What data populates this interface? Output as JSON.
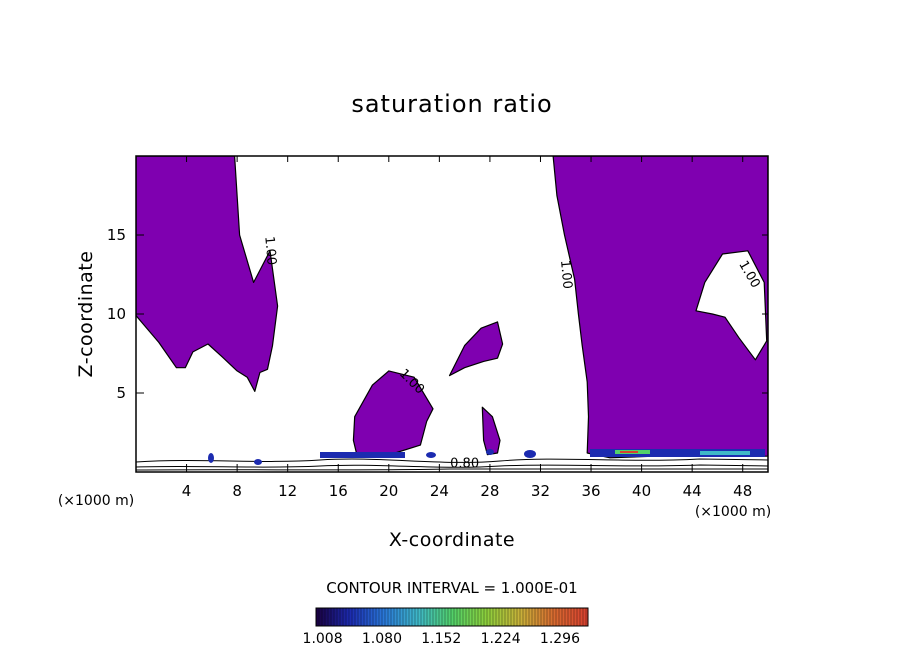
{
  "chart_data": {
    "type": "contour",
    "title": "saturation ratio",
    "xlabel": "X-coordinate",
    "ylabel": "Z-coordinate",
    "x_unit_label": "(×1000 m)",
    "x_unit_label_right": "(×1000 m)",
    "xlim": [
      0,
      50
    ],
    "ylim": [
      0,
      20
    ],
    "x_ticks": [
      4,
      8,
      12,
      16,
      20,
      24,
      28,
      32,
      36,
      40,
      44,
      48
    ],
    "x_tick_labels": [
      "4",
      "8",
      "12",
      "16",
      "20",
      "24",
      "28",
      "32",
      "36",
      "40",
      "44",
      "48"
    ],
    "y_ticks": [
      5,
      10,
      15
    ],
    "y_tick_labels": [
      "5",
      "10",
      "15"
    ],
    "contour_interval_text": "CONTOUR INTERVAL = 1.000E-01",
    "contour_labels": [
      {
        "text": "1.00",
        "x": 10.6,
        "z": 14.0,
        "rotation": 85
      },
      {
        "text": "1.00",
        "x": 34.0,
        "z": 12.5,
        "rotation": 85
      },
      {
        "text": "1.00",
        "x": 48.5,
        "z": 12.5,
        "rotation": 60
      },
      {
        "text": "1.00",
        "x": 21.8,
        "z": 5.7,
        "rotation": 45
      },
      {
        "text": "0.80",
        "x": 26.0,
        "z": 0.5,
        "rotation": 0
      }
    ],
    "colorbar": {
      "min": 1.0,
      "max": 1.33,
      "ticks": [
        1.008,
        1.08,
        1.152,
        1.224,
        1.296
      ],
      "tick_labels": [
        "1.008",
        "1.080",
        "1.152",
        "1.224",
        "1.296"
      ],
      "colors": [
        "#1a0040",
        "#1c2bb0",
        "#2a78d8",
        "#3fb8c8",
        "#52d06a",
        "#8ccf3c",
        "#c8b23a",
        "#d86a30",
        "#d84030"
      ]
    },
    "fill_color": "#7f00b0",
    "regions": [
      {
        "name": "left-cloud",
        "points": [
          [
            0,
            20
          ],
          [
            7.8,
            20
          ],
          [
            8.2,
            15
          ],
          [
            9.3,
            12
          ],
          [
            10.6,
            14
          ],
          [
            11.2,
            10.5
          ],
          [
            10.8,
            8
          ],
          [
            10.4,
            6.5
          ],
          [
            9.8,
            6.3
          ],
          [
            9.4,
            5.1
          ],
          [
            8.8,
            6
          ],
          [
            8,
            6.4
          ],
          [
            6.8,
            7.3
          ],
          [
            5.7,
            8.1
          ],
          [
            4.5,
            7.6
          ],
          [
            3.9,
            6.6
          ],
          [
            3.2,
            6.6
          ],
          [
            1.8,
            8.2
          ],
          [
            0,
            9.9
          ]
        ]
      },
      {
        "name": "right-cloud",
        "points": [
          [
            33,
            20
          ],
          [
            50,
            20
          ],
          [
            50,
            1.0
          ],
          [
            47,
            1.0
          ],
          [
            44,
            1.2
          ],
          [
            41,
            1.0
          ],
          [
            37.5,
            0.9
          ],
          [
            35.7,
            1.2
          ],
          [
            35.8,
            3.5
          ],
          [
            35.7,
            5.7
          ],
          [
            35.3,
            8.0
          ],
          [
            35.0,
            10.0
          ],
          [
            34.7,
            12.2
          ],
          [
            33.9,
            15.0
          ],
          [
            33.3,
            17.5
          ]
        ]
      },
      {
        "name": "right-hole",
        "points": [
          [
            44.3,
            10.2
          ],
          [
            45.0,
            12.0
          ],
          [
            46.4,
            13.8
          ],
          [
            48.4,
            14.0
          ],
          [
            49.7,
            12.0
          ],
          [
            49.9,
            8.3
          ],
          [
            49.0,
            7.1
          ],
          [
            47.7,
            8.5
          ],
          [
            46.6,
            9.8
          ],
          [
            45.6,
            10.0
          ]
        ]
      },
      {
        "name": "center-cloud",
        "points": [
          [
            17.3,
            3.5
          ],
          [
            18.7,
            5.5
          ],
          [
            20.0,
            6.4
          ],
          [
            22.0,
            6.0
          ],
          [
            23.5,
            4.0
          ],
          [
            23.0,
            3.2
          ],
          [
            22.5,
            1.7
          ],
          [
            20.5,
            1.2
          ],
          [
            17.5,
            1.0
          ],
          [
            17.2,
            2.0
          ]
        ]
      },
      {
        "name": "upper-puff",
        "points": [
          [
            24.8,
            6.1
          ],
          [
            26.0,
            8.0
          ],
          [
            27.3,
            9.1
          ],
          [
            28.6,
            9.5
          ],
          [
            29.0,
            8.1
          ],
          [
            28.6,
            7.2
          ],
          [
            27.5,
            7.0
          ],
          [
            26.0,
            6.6
          ]
        ]
      },
      {
        "name": "small-puff",
        "points": [
          [
            27.4,
            4.1
          ],
          [
            28.2,
            3.5
          ],
          [
            28.8,
            2.0
          ],
          [
            28.6,
            1.2
          ],
          [
            27.8,
            1.1
          ],
          [
            27.5,
            2.0
          ]
        ]
      }
    ]
  }
}
